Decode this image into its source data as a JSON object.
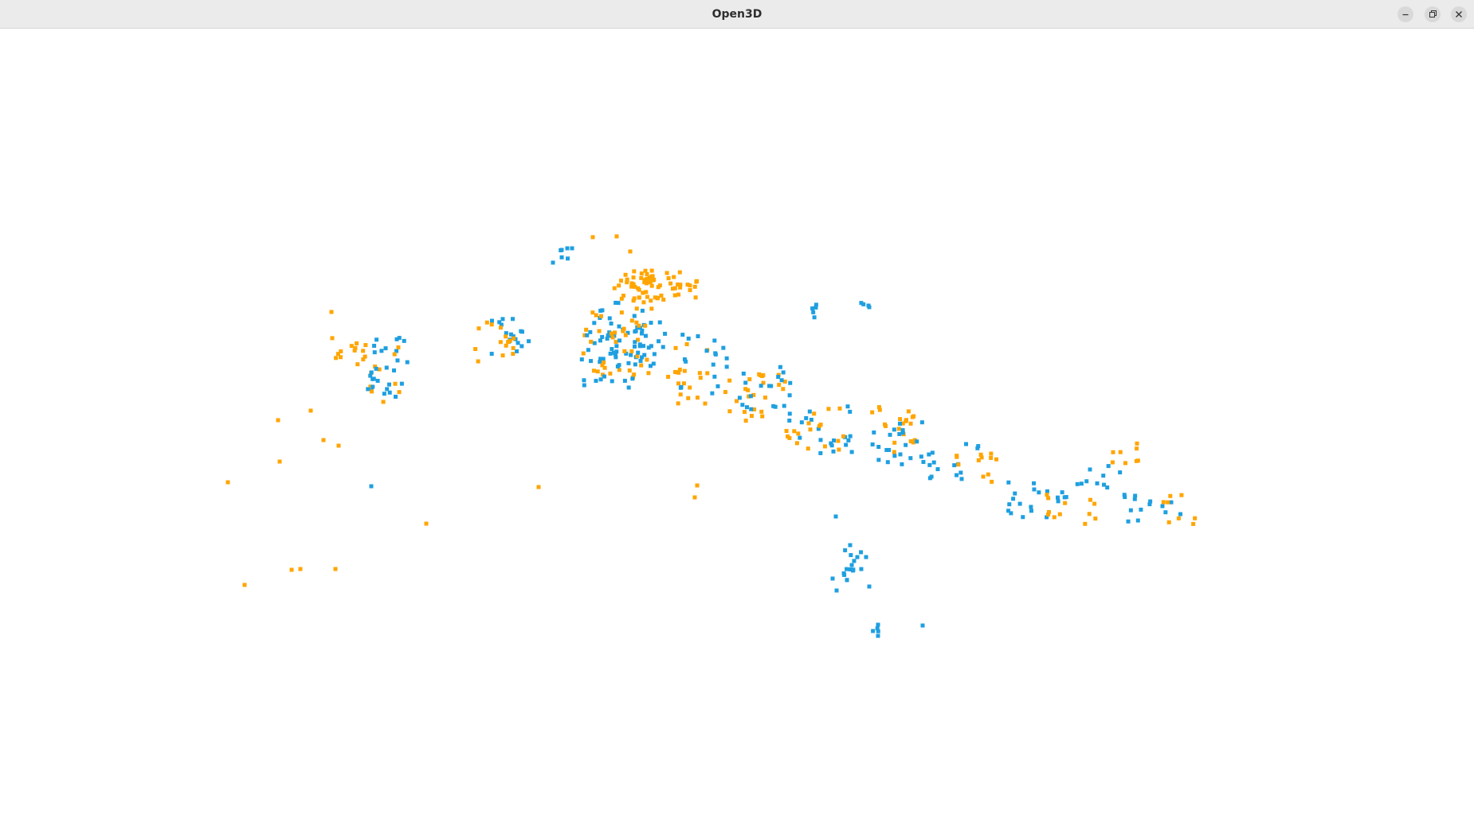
{
  "window": {
    "title": "Open3D",
    "controls": [
      "minimize-icon",
      "maximize-icon",
      "close-icon"
    ]
  },
  "viewport": {
    "background": "#ffffff",
    "point_colors": {
      "orange": "#ffa500",
      "blue": "#1e9fe0"
    }
  }
}
